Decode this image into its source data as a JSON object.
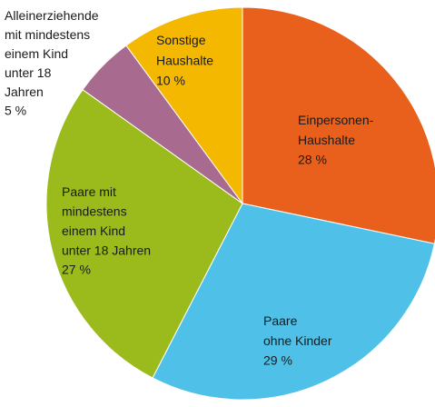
{
  "chart_data": {
    "type": "pie",
    "categories": [
      "Einpersonen-\nHaushalte",
      "Paare\nohne Kinder",
      "Paare mit\nmindestens\neinem Kind\nunter 18 Jahren",
      "Alleinerziehende\nmit mindestens\neinem Kind\nunter 18\nJahren",
      "Sonstige\nHaushalte"
    ],
    "values": [
      28,
      29,
      27,
      5,
      10
    ],
    "value_labels": [
      "28 %",
      "29 %",
      "27 %",
      "5 %",
      "10 %"
    ],
    "colors": [
      "#e8601c",
      "#4fc1e9",
      "#9bbb1c",
      "#a86a8e",
      "#f5b800"
    ]
  }
}
